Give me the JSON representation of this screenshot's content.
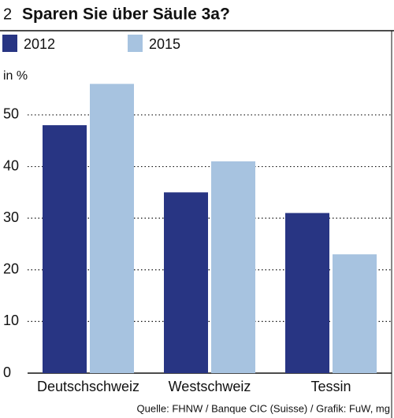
{
  "chart_data": {
    "type": "bar",
    "number": "2",
    "title": "Sparen Sie über Säule 3a?",
    "y_label": "in %",
    "categories": [
      "Deutschschweiz",
      "Westschweiz",
      "Tessin"
    ],
    "series": [
      {
        "name": "2012",
        "color": "#283583",
        "values": [
          48,
          35,
          31
        ]
      },
      {
        "name": "2015",
        "color": "#a7c3e0",
        "values": [
          56,
          41,
          23
        ]
      }
    ],
    "ylim": [
      0,
      57
    ],
    "yticks": [
      0,
      10,
      20,
      30,
      40,
      50
    ],
    "grid": true,
    "source": "Quelle: FHNW / Banque CIC (Suisse) / Grafik: FuW, mg"
  }
}
